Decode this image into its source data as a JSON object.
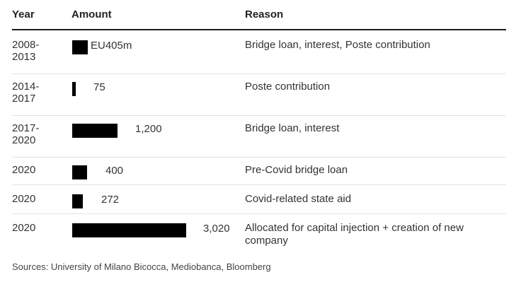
{
  "header": {
    "year": "Year",
    "amount": "Amount",
    "reason": "Reason"
  },
  "chart_data": {
    "type": "bar",
    "orientation": "horizontal",
    "categories": [
      "2008-2013",
      "2014-2017",
      "2017-2020",
      "2020",
      "2020",
      "2020"
    ],
    "values": [
      405,
      75,
      1200,
      400,
      272,
      3020
    ],
    "value_labels": [
      "EU405m",
      "75",
      "1,200",
      "400",
      "272",
      "3,020"
    ],
    "reasons": [
      "Bridge loan, interest, Poste contribution",
      "Poste contribution",
      "Bridge loan, interest",
      "Pre-Covid bridge loan",
      "Covid-related state aid",
      "Allocated for capital injection + creation of new company"
    ],
    "bar_color": "#000000"
  },
  "rows": [
    {
      "year_a": "2008-",
      "year_b": "2013"
    },
    {
      "year_a": "2014-",
      "year_b": "2017"
    },
    {
      "year_a": "2017-",
      "year_b": "2020"
    },
    {
      "year_a": "2020",
      "year_b": ""
    },
    {
      "year_a": "2020",
      "year_b": ""
    },
    {
      "year_a": "2020",
      "year_b": ""
    }
  ],
  "footer": {
    "source": "Sources: University of Milano Bicocca, Mediobanca, Bloomberg"
  }
}
